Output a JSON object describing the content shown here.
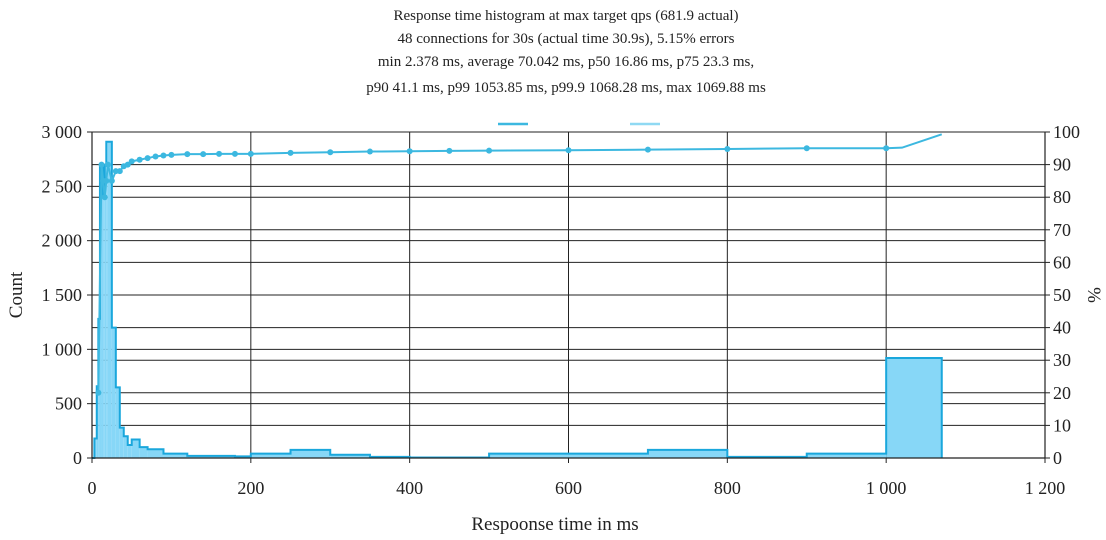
{
  "chart_data": {
    "type": "histogram",
    "title": [
      "Response time histogram at max target qps (681.9 actual)",
      "48 connections for 30s (actual time 30.9s), 5.15% errors",
      "min 2.378 ms, average 70.042 ms, p50 16.86 ms, p75 23.3 ms,",
      "p90 41.1 ms, p99 1053.85 ms, p99.9 1068.28 ms, max 1069.88 ms"
    ],
    "xlabel": "Respoonse time in ms",
    "ylabel": "Count",
    "y2label": "%",
    "xlim": [
      0,
      1200
    ],
    "ylim": [
      0,
      3000
    ],
    "y2lim": [
      0,
      100
    ],
    "x_ticks": [
      "0",
      "200",
      "400",
      "600",
      "800",
      "1 000",
      "1 200"
    ],
    "y_ticks": [
      "0",
      "500",
      "1 000",
      "1 500",
      "2 000",
      "2 500",
      "3 000"
    ],
    "y2_ticks": [
      "0",
      "10",
      "20",
      "30",
      "40",
      "50",
      "60",
      "70",
      "80",
      "90",
      "100"
    ],
    "legend": {
      "placement": "top-center",
      "entries": [
        "",
        ""
      ]
    },
    "colors": {
      "histogram_fill": "#87d7f7",
      "histogram_line": "#1aa7dc",
      "percentile_line": "#3cb8e0",
      "legend_secondary": "#8fd9f3"
    },
    "grid": true,
    "histogram": {
      "bins": [
        [
          0,
          3,
          0
        ],
        [
          3,
          6,
          180
        ],
        [
          6,
          8,
          660
        ],
        [
          8,
          10,
          1280
        ],
        [
          10,
          12,
          2700
        ],
        [
          12,
          14,
          2700
        ],
        [
          14,
          16,
          2400
        ],
        [
          16,
          18,
          2700
        ],
        [
          18,
          20,
          2910
        ],
        [
          20,
          25,
          2910
        ],
        [
          25,
          30,
          1200
        ],
        [
          30,
          35,
          650
        ],
        [
          35,
          40,
          280
        ],
        [
          40,
          45,
          200
        ],
        [
          45,
          50,
          120
        ],
        [
          50,
          60,
          170
        ],
        [
          60,
          70,
          100
        ],
        [
          70,
          90,
          80
        ],
        [
          90,
          120,
          40
        ],
        [
          120,
          180,
          20
        ],
        [
          180,
          200,
          15
        ],
        [
          200,
          250,
          40
        ],
        [
          250,
          300,
          75
        ],
        [
          300,
          350,
          30
        ],
        [
          350,
          400,
          10
        ],
        [
          400,
          500,
          5
        ],
        [
          500,
          700,
          40
        ],
        [
          700,
          800,
          75
        ],
        [
          800,
          900,
          10
        ],
        [
          900,
          1000,
          40
        ],
        [
          1000,
          1070,
          920
        ]
      ]
    },
    "percentiles": {
      "x": [
        8,
        12,
        14,
        16,
        18,
        20,
        25,
        30,
        35,
        40,
        45,
        50,
        60,
        70,
        80,
        90,
        100,
        120,
        140,
        160,
        180,
        200,
        250,
        300,
        350,
        400,
        450,
        500,
        600,
        700,
        800,
        900,
        1000,
        1020,
        1070
      ],
      "y": [
        20,
        90,
        85,
        80,
        85,
        90,
        85,
        88,
        88,
        89.5,
        90,
        91,
        91.5,
        92,
        92.5,
        92.8,
        93,
        93.2,
        93.2,
        93.3,
        93.3,
        93.3,
        93.6,
        93.8,
        94,
        94.1,
        94.2,
        94.3,
        94.4,
        94.6,
        94.8,
        95,
        95,
        95.2,
        99.3
      ]
    }
  }
}
